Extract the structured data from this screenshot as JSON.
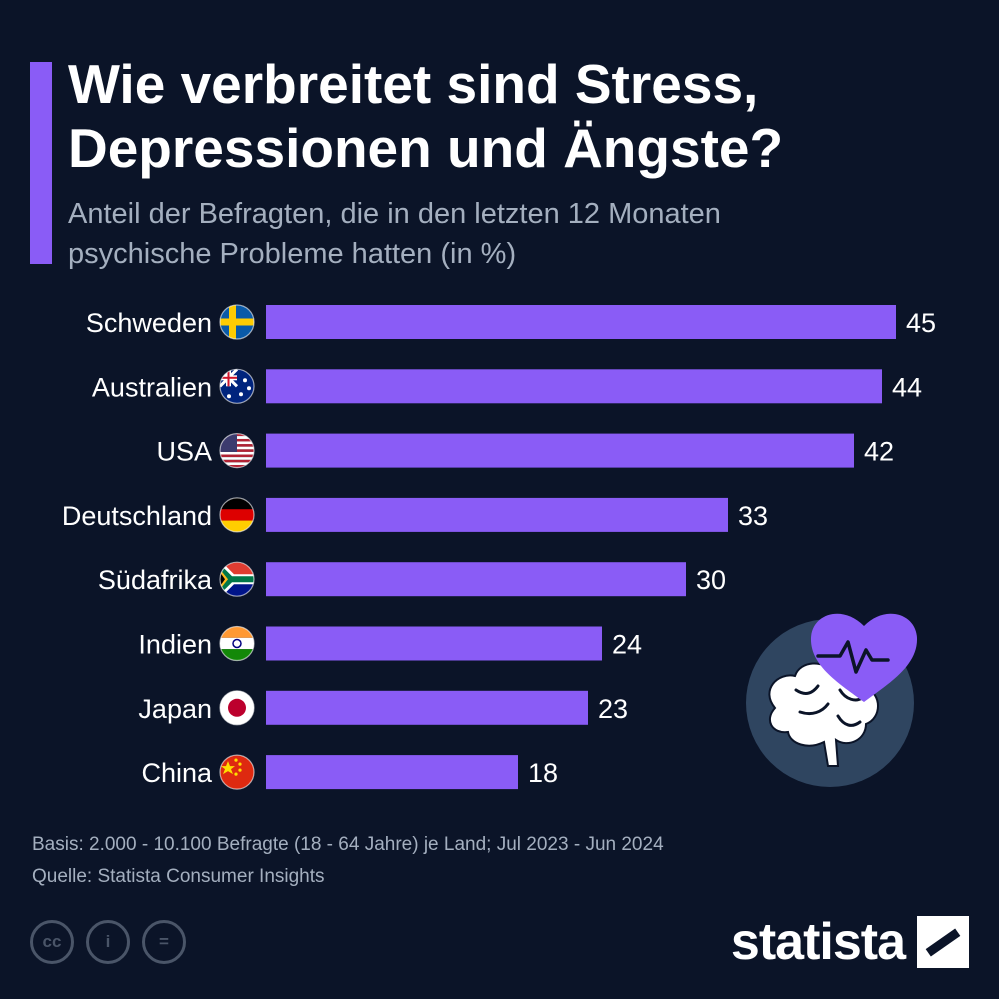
{
  "header": {
    "title": "Wie verbreitet sind Stress,\nDepressionen und Ängste?",
    "subtitle": "Anteil der Befragten, die in den letzten 12 Monaten\npsychische Probleme hatten (in %)"
  },
  "chart_data": {
    "type": "bar",
    "orientation": "horizontal",
    "categories": [
      "Schweden",
      "Australien",
      "USA",
      "Deutschland",
      "Südafrika",
      "Indien",
      "Japan",
      "China"
    ],
    "values": [
      45,
      44,
      42,
      33,
      30,
      24,
      23,
      18
    ],
    "flags": [
      "flag-sweden-icon",
      "flag-australia-icon",
      "flag-usa-icon",
      "flag-germany-icon",
      "flag-south-africa-icon",
      "flag-india-icon",
      "flag-japan-icon",
      "flag-china-icon"
    ],
    "xlim": [
      0,
      45
    ],
    "grid": false,
    "bar_color": "#8a5cf6"
  },
  "footer": {
    "basis": "Basis: 2.000 - 10.100 Befragte (18 - 64 Jahre) je Land; Jul 2023 - Jun 2024",
    "source": "Quelle: Statista Consumer Insights",
    "brand": "statista"
  },
  "colors": {
    "background": "#0b1428",
    "accent": "#8a5cf6",
    "text_muted": "#a4afbf",
    "illustration_circle": "#2f4560"
  }
}
